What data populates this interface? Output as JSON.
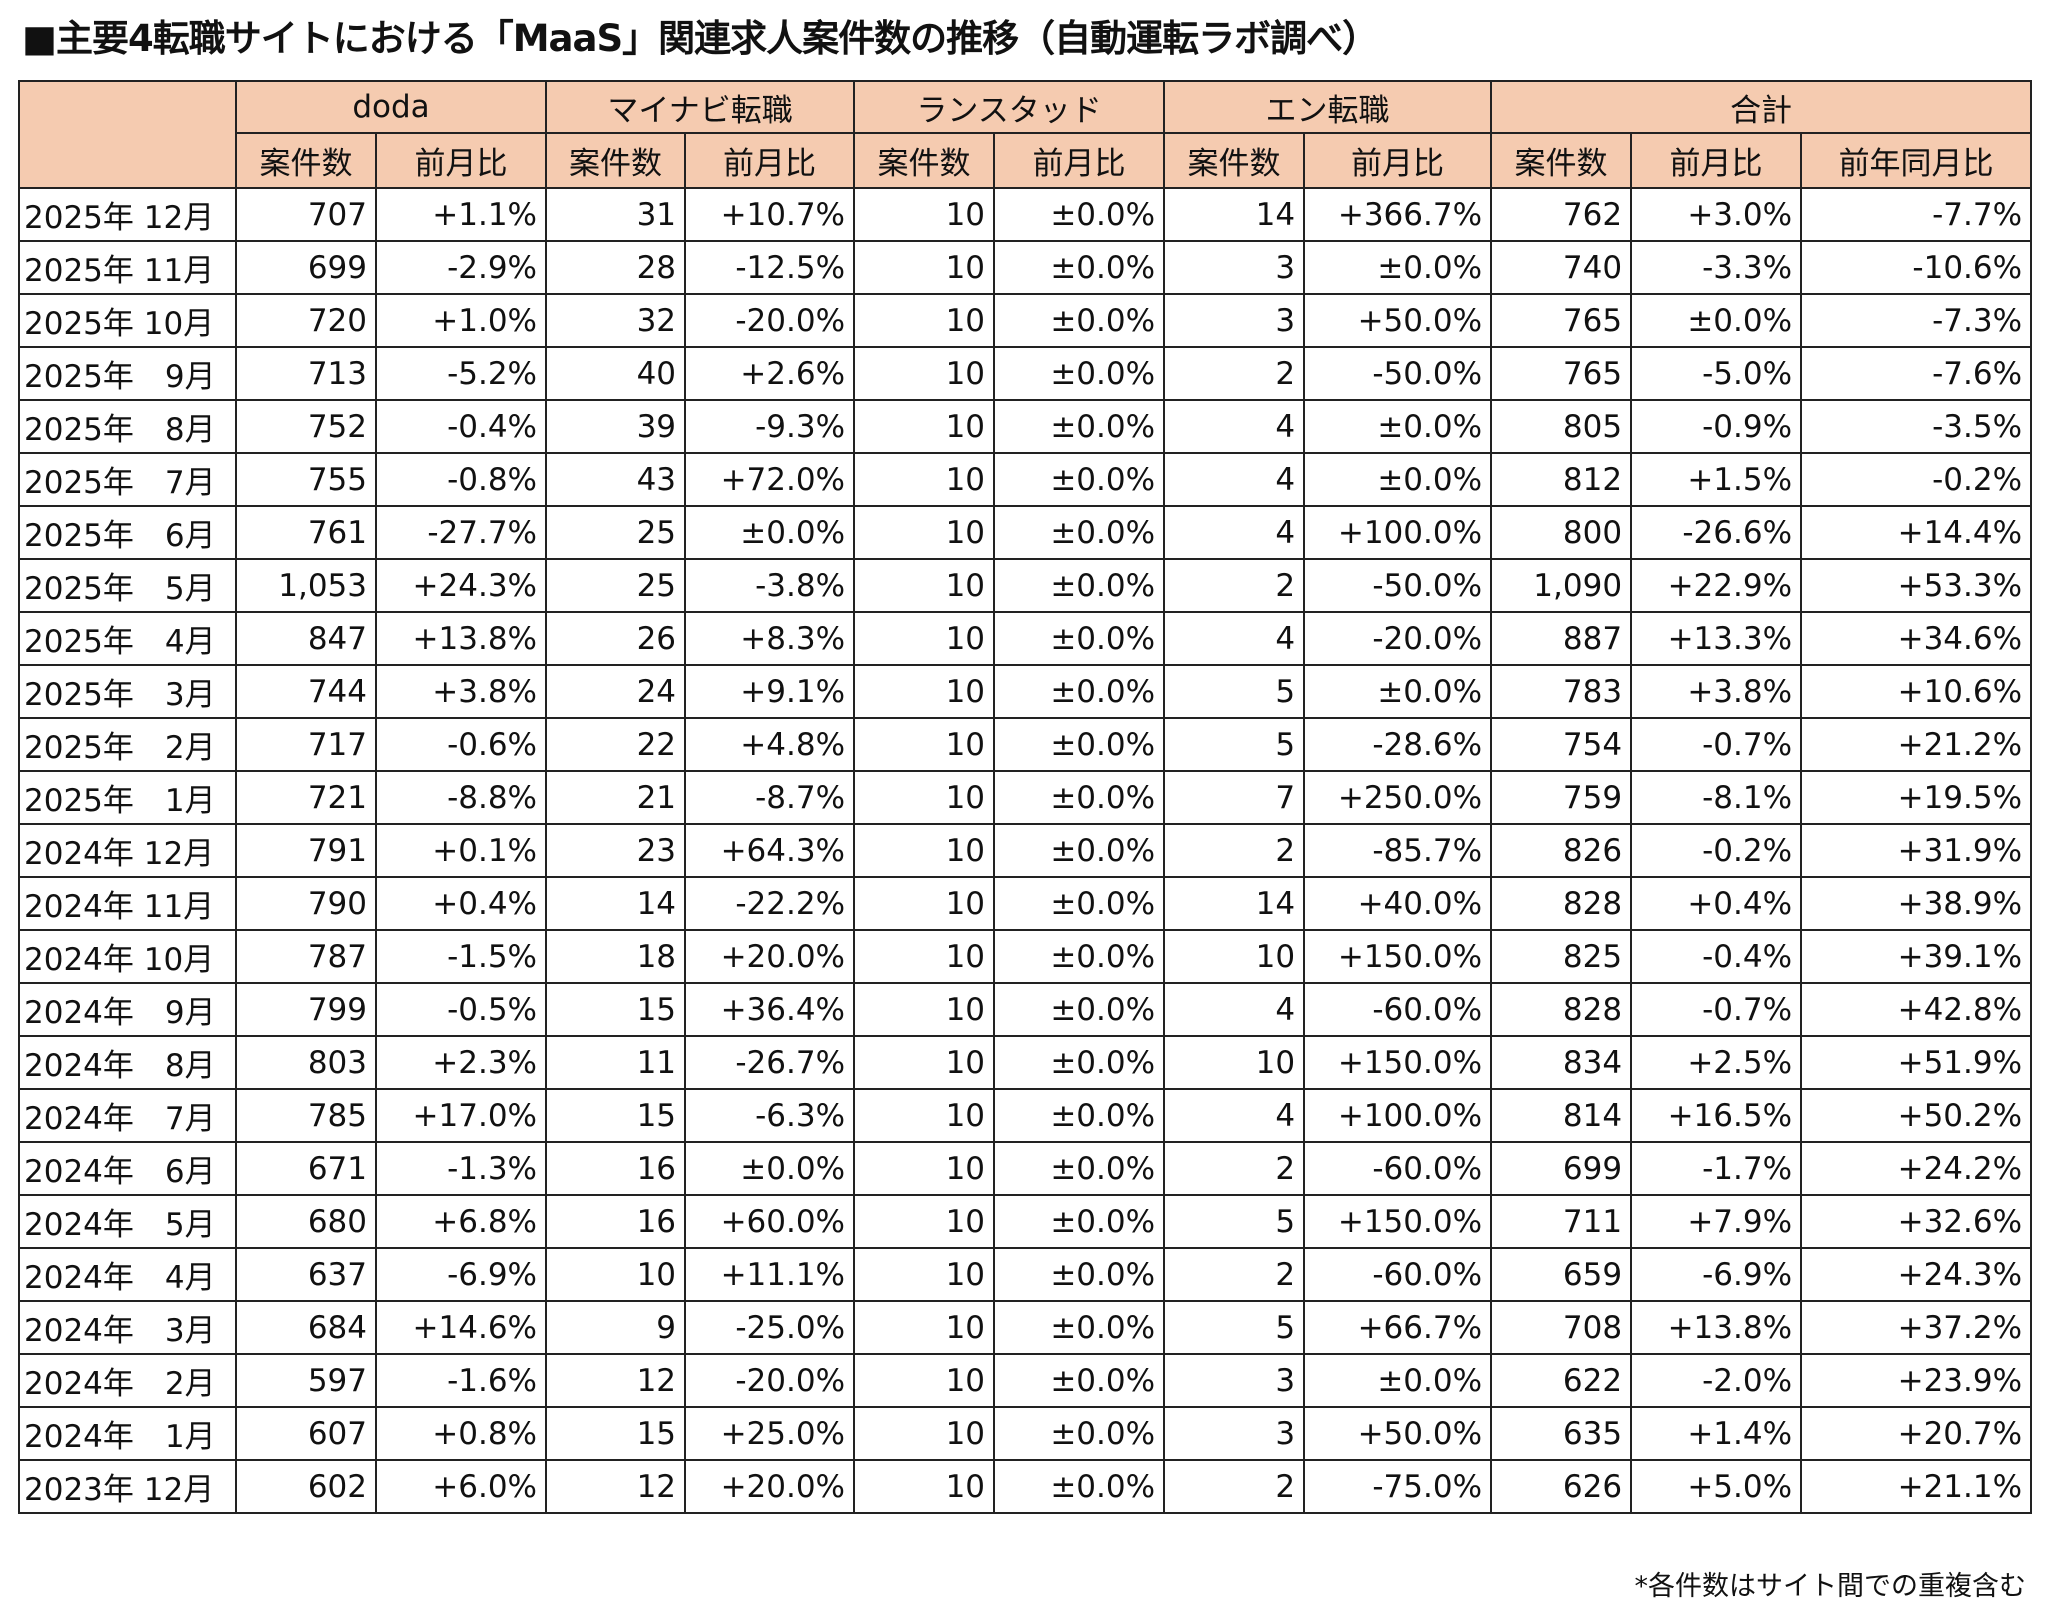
{
  "title": "■主要4転職サイトにおける「MaaS」関連求人案件数の推移（自動運転ラボ調べ）",
  "sites": [
    "doda",
    "マイナビ転職",
    "ランスタッド",
    "エン転職",
    "合計"
  ],
  "subheaders": [
    "案件数",
    "前月比",
    "案件数",
    "前月比",
    "案件数",
    "前月比",
    "案件数",
    "前月比",
    "案件数",
    "前月比",
    "前年同月比"
  ],
  "header_color": "#f5cbb0",
  "rows": [
    [
      "2025年 12月",
      "707",
      "+1.1%",
      "31",
      "+10.7%",
      "10",
      "±0.0%",
      "14",
      "+366.7%",
      "762",
      "+3.0%",
      "-7.7%"
    ],
    [
      "2025年 11月",
      "699",
      "-2.9%",
      "28",
      "-12.5%",
      "10",
      "±0.0%",
      "3",
      "±0.0%",
      "740",
      "-3.3%",
      "-10.6%"
    ],
    [
      "2025年 10月",
      "720",
      "+1.0%",
      "32",
      "-20.0%",
      "10",
      "±0.0%",
      "3",
      "+50.0%",
      "765",
      "±0.0%",
      "-7.3%"
    ],
    [
      "2025年　9月",
      "713",
      "-5.2%",
      "40",
      "+2.6%",
      "10",
      "±0.0%",
      "2",
      "-50.0%",
      "765",
      "-5.0%",
      "-7.6%"
    ],
    [
      "2025年　8月",
      "752",
      "-0.4%",
      "39",
      "-9.3%",
      "10",
      "±0.0%",
      "4",
      "±0.0%",
      "805",
      "-0.9%",
      "-3.5%"
    ],
    [
      "2025年　7月",
      "755",
      "-0.8%",
      "43",
      "+72.0%",
      "10",
      "±0.0%",
      "4",
      "±0.0%",
      "812",
      "+1.5%",
      "-0.2%"
    ],
    [
      "2025年　6月",
      "761",
      "-27.7%",
      "25",
      "±0.0%",
      "10",
      "±0.0%",
      "4",
      "+100.0%",
      "800",
      "-26.6%",
      "+14.4%"
    ],
    [
      "2025年　5月",
      "1,053",
      "+24.3%",
      "25",
      "-3.8%",
      "10",
      "±0.0%",
      "2",
      "-50.0%",
      "1,090",
      "+22.9%",
      "+53.3%"
    ],
    [
      "2025年　4月",
      "847",
      "+13.8%",
      "26",
      "+8.3%",
      "10",
      "±0.0%",
      "4",
      "-20.0%",
      "887",
      "+13.3%",
      "+34.6%"
    ],
    [
      "2025年　3月",
      "744",
      "+3.8%",
      "24",
      "+9.1%",
      "10",
      "±0.0%",
      "5",
      "±0.0%",
      "783",
      "+3.8%",
      "+10.6%"
    ],
    [
      "2025年　2月",
      "717",
      "-0.6%",
      "22",
      "+4.8%",
      "10",
      "±0.0%",
      "5",
      "-28.6%",
      "754",
      "-0.7%",
      "+21.2%"
    ],
    [
      "2025年　1月",
      "721",
      "-8.8%",
      "21",
      "-8.7%",
      "10",
      "±0.0%",
      "7",
      "+250.0%",
      "759",
      "-8.1%",
      "+19.5%"
    ],
    [
      "2024年 12月",
      "791",
      "+0.1%",
      "23",
      "+64.3%",
      "10",
      "±0.0%",
      "2",
      "-85.7%",
      "826",
      "-0.2%",
      "+31.9%"
    ],
    [
      "2024年 11月",
      "790",
      "+0.4%",
      "14",
      "-22.2%",
      "10",
      "±0.0%",
      "14",
      "+40.0%",
      "828",
      "+0.4%",
      "+38.9%"
    ],
    [
      "2024年 10月",
      "787",
      "-1.5%",
      "18",
      "+20.0%",
      "10",
      "±0.0%",
      "10",
      "+150.0%",
      "825",
      "-0.4%",
      "+39.1%"
    ],
    [
      "2024年　9月",
      "799",
      "-0.5%",
      "15",
      "+36.4%",
      "10",
      "±0.0%",
      "4",
      "-60.0%",
      "828",
      "-0.7%",
      "+42.8%"
    ],
    [
      "2024年　8月",
      "803",
      "+2.3%",
      "11",
      "-26.7%",
      "10",
      "±0.0%",
      "10",
      "+150.0%",
      "834",
      "+2.5%",
      "+51.9%"
    ],
    [
      "2024年　7月",
      "785",
      "+17.0%",
      "15",
      "-6.3%",
      "10",
      "±0.0%",
      "4",
      "+100.0%",
      "814",
      "+16.5%",
      "+50.2%"
    ],
    [
      "2024年　6月",
      "671",
      "-1.3%",
      "16",
      "±0.0%",
      "10",
      "±0.0%",
      "2",
      "-60.0%",
      "699",
      "-1.7%",
      "+24.2%"
    ],
    [
      "2024年　5月",
      "680",
      "+6.8%",
      "16",
      "+60.0%",
      "10",
      "±0.0%",
      "5",
      "+150.0%",
      "711",
      "+7.9%",
      "+32.6%"
    ],
    [
      "2024年　4月",
      "637",
      "-6.9%",
      "10",
      "+11.1%",
      "10",
      "±0.0%",
      "2",
      "-60.0%",
      "659",
      "-6.9%",
      "+24.3%"
    ],
    [
      "2024年　3月",
      "684",
      "+14.6%",
      "9",
      "-25.0%",
      "10",
      "±0.0%",
      "5",
      "+66.7%",
      "708",
      "+13.8%",
      "+37.2%"
    ],
    [
      "2024年　2月",
      "597",
      "-1.6%",
      "12",
      "-20.0%",
      "10",
      "±0.0%",
      "3",
      "±0.0%",
      "622",
      "-2.0%",
      "+23.9%"
    ],
    [
      "2024年　1月",
      "607",
      "+0.8%",
      "15",
      "+25.0%",
      "10",
      "±0.0%",
      "3",
      "+50.0%",
      "635",
      "+1.4%",
      "+20.7%"
    ],
    [
      "2023年 12月",
      "602",
      "+6.0%",
      "12",
      "+20.0%",
      "10",
      "±0.0%",
      "2",
      "-75.0%",
      "626",
      "+5.0%",
      "+21.1%"
    ]
  ],
  "footnote": "*各件数はサイト間での重複含む"
}
